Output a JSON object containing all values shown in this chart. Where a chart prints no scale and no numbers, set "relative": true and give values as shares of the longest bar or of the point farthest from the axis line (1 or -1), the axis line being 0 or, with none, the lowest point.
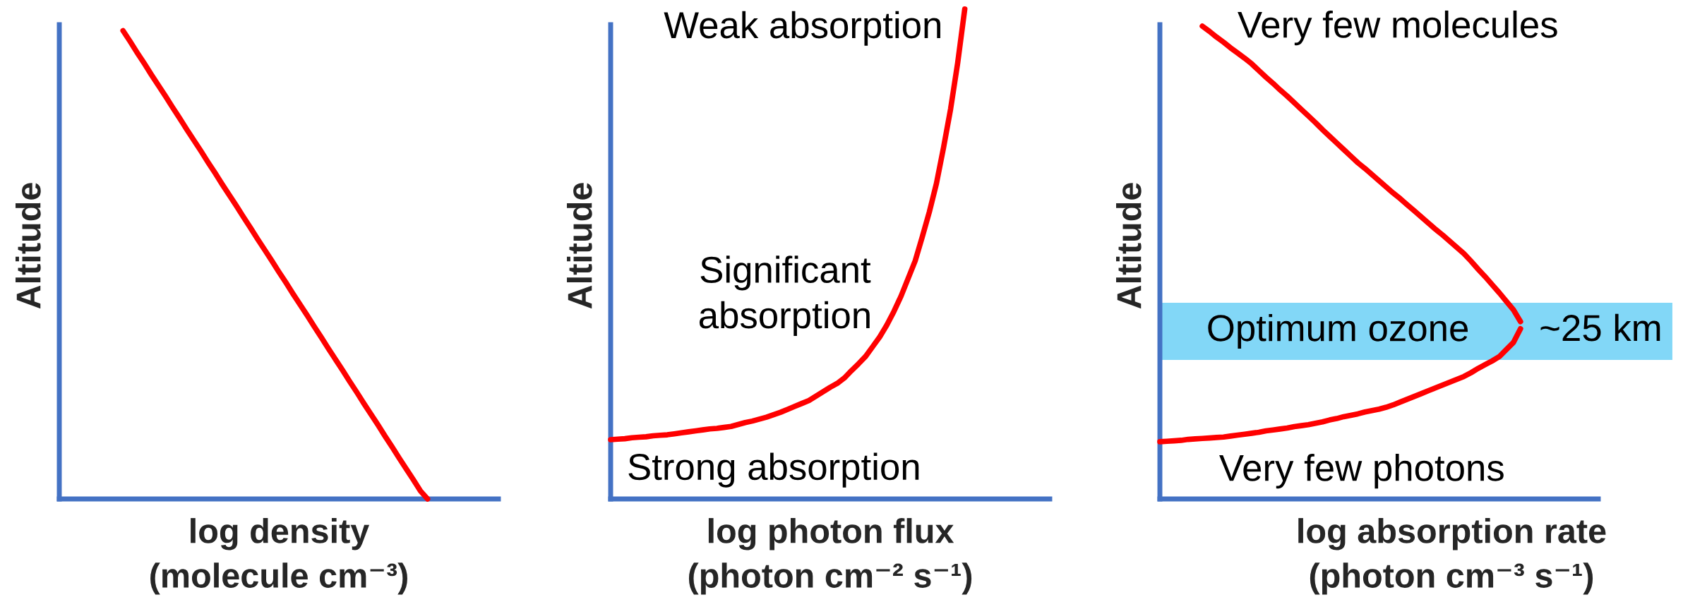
{
  "chart_data": [
    {
      "type": "line",
      "relative": true,
      "xlabel": "log density\n(molecule cm⁻³)",
      "ylabel": "Altitude",
      "categories": [
        null,
        null,
        null,
        null,
        null,
        null,
        null,
        null,
        null,
        null,
        null,
        null,
        null,
        null,
        null,
        null,
        null,
        null,
        null,
        null,
        null,
        null,
        null,
        null,
        null,
        null,
        null,
        null,
        null,
        null,
        null,
        null,
        null,
        null,
        null,
        null,
        null,
        null,
        null,
        null,
        null,
        null,
        null,
        null,
        null,
        null,
        null,
        null,
        null,
        null,
        null,
        null,
        null,
        null,
        null,
        null,
        null,
        null,
        null,
        null,
        null,
        null,
        null
      ],
      "series": [
        {
          "color": "#ff0000",
          "values": [
            null,
            null,
            null,
            null,
            null,
            null,
            null,
            null,
            null,
            1,
            0.977,
            0.953,
            0.93,
            0.906,
            0.883,
            0.86,
            0.836,
            0.813,
            0.789,
            0.766,
            0.743,
            0.719,
            0.696,
            0.672,
            0.649,
            0.626,
            0.602,
            0.579,
            0.555,
            0.532,
            0.509,
            0.485,
            0.462,
            0.438,
            0.415,
            0.392,
            0.368,
            0.345,
            0.321,
            0.298,
            0.275,
            0.251,
            0.228,
            0.204,
            0.181,
            0.158,
            0.134,
            0.111,
            0.087,
            0.064,
            0.041,
            0.017,
            0,
            null,
            null,
            null,
            null,
            null,
            null,
            null,
            null,
            null,
            null
          ]
        }
      ]
    },
    {
      "type": "line",
      "relative": true,
      "xlabel": "log photon flux\n(photon cm⁻² s⁻¹)",
      "ylabel": "Altitude",
      "categories": [
        null,
        null,
        null,
        null,
        null,
        null,
        null,
        null,
        null,
        null,
        null,
        null,
        null,
        null,
        null,
        null,
        null,
        null,
        null,
        null,
        null,
        null,
        null,
        null,
        null,
        null,
        null,
        null,
        null,
        null,
        null,
        null,
        null,
        null,
        null,
        null,
        null,
        null,
        null,
        null,
        null,
        null,
        null,
        null,
        null,
        null,
        null,
        null,
        null,
        null,
        null,
        null,
        null,
        null,
        null,
        null,
        null,
        null,
        null,
        null,
        null,
        null,
        null
      ],
      "series": [
        {
          "color": "#ff0000",
          "values": [
            0.121,
            0.122,
            0.123,
            0.125,
            0.126,
            0.127,
            0.129,
            0.13,
            0.131,
            0.133,
            0.135,
            0.137,
            0.139,
            0.141,
            0.143,
            0.144,
            0.146,
            0.148,
            0.152,
            0.156,
            0.159,
            0.163,
            0.167,
            0.172,
            0.177,
            0.183,
            0.189,
            0.195,
            0.201,
            0.21,
            0.219,
            0.228,
            0.236,
            0.247,
            0.262,
            0.276,
            0.291,
            0.311,
            0.331,
            0.355,
            0.383,
            0.414,
            0.45,
            0.486,
            0.535,
            0.586,
            0.644,
            0.717,
            0.796,
            0.89,
            1,
            null,
            null,
            null,
            null,
            null,
            null,
            null,
            null,
            null,
            null,
            null,
            null
          ]
        }
      ],
      "annotations": [
        "Weak absorption",
        "Significant\nabsorption",
        "Strong absorption"
      ]
    },
    {
      "type": "line",
      "relative": true,
      "xlabel": "log absorption rate\n(photon cm⁻³ s⁻¹)",
      "ylabel": "Altitude",
      "categories": [
        null,
        null,
        null,
        null,
        null,
        null,
        null,
        null,
        null,
        null,
        null,
        null,
        null,
        null,
        null,
        null,
        null,
        null,
        null,
        null,
        null,
        null,
        null,
        null,
        null,
        null,
        null,
        null,
        null,
        null,
        null,
        null,
        null,
        null,
        null,
        null,
        null,
        null,
        null,
        null,
        null,
        null,
        null,
        null,
        null,
        null,
        null,
        null,
        null,
        null,
        null,
        null,
        null,
        null,
        null,
        null,
        null,
        null,
        null,
        null,
        null,
        null,
        null
      ],
      "series": [
        {
          "color": "#ff0000",
          "values": [
            null,
            null,
            null,
            null,
            null,
            null,
            1,
            0.989,
            0.977,
            0.966,
            0.954,
            0.943,
            0.932,
            0.92,
            0.906,
            0.892,
            0.879,
            0.865,
            0.852,
            0.838,
            0.824,
            0.81,
            0.796,
            0.781,
            0.767,
            0.753,
            0.739,
            0.725,
            0.711,
            0.699,
            0.686,
            0.673,
            0.66,
            0.647,
            0.635,
            0.622,
            0.609,
            0.596,
            0.583,
            0.57,
            0.558,
            0.545,
            0.532,
            0.519,
            0.503,
            0.486,
            0.47,
            0.453,
            0.436,
            0.418,
            0.4,
            0.375,
            null,
            null,
            null,
            null,
            null,
            null,
            null,
            null,
            null,
            null,
            null
          ]
        },
        {
          "color": "#ff0000",
          "values": [
            0.121,
            0.122,
            0.123,
            0.124,
            0.126,
            0.127,
            0.128,
            0.129,
            0.13,
            0.131,
            0.133,
            0.135,
            0.137,
            0.139,
            0.141,
            0.144,
            0.146,
            0.148,
            0.15,
            0.153,
            0.155,
            0.157,
            0.16,
            0.163,
            0.167,
            0.17,
            0.174,
            0.177,
            0.18,
            0.184,
            0.187,
            0.19,
            0.194,
            0.199,
            0.205,
            0.211,
            0.217,
            0.223,
            0.229,
            0.235,
            0.241,
            0.247,
            0.253,
            0.259,
            0.267,
            0.276,
            0.284,
            0.292,
            0.301,
            0.316,
            0.331,
            0.36,
            null,
            null,
            null,
            null,
            null,
            null,
            null,
            null,
            null,
            null,
            null
          ]
        }
      ],
      "bands": [
        {
          "axis": "y",
          "from": 0.294,
          "to": 0.415,
          "label": "Optimum ozone",
          "color": "#82d7f7"
        }
      ],
      "annotations": [
        "Very few molecules",
        "Very few photons",
        "~25 km"
      ]
    }
  ]
}
